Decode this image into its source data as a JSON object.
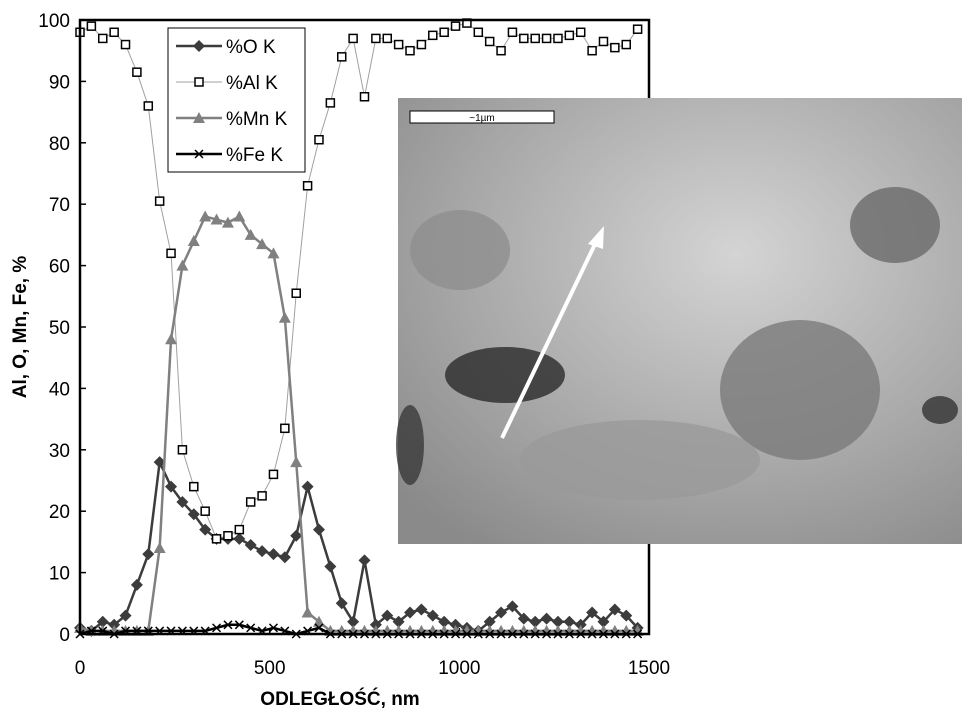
{
  "chart_data": {
    "type": "line",
    "x_label": "ODLEGŁOŚĆ, nm",
    "y_label": "Al, O, Mn, Fe,  %",
    "inset_scale": "~1µm",
    "xlim": [
      0,
      1500
    ],
    "xticks": [
      0,
      500,
      1000,
      1500
    ],
    "ylim": [
      0,
      100
    ],
    "yticks": [
      0,
      10,
      20,
      30,
      40,
      50,
      60,
      70,
      80,
      90,
      100
    ],
    "x": [
      0,
      30,
      60,
      90,
      120,
      150,
      180,
      210,
      240,
      270,
      300,
      330,
      360,
      390,
      420,
      450,
      480,
      510,
      540,
      570,
      600,
      630,
      660,
      690,
      720,
      750,
      780,
      810,
      840,
      870,
      900,
      930,
      960,
      990,
      1020,
      1050,
      1080,
      1110,
      1140,
      1170,
      1200,
      1230,
      1260,
      1290,
      1320,
      1350,
      1380,
      1410,
      1440,
      1470
    ],
    "series": [
      {
        "name": "%O K",
        "color": "#3c3c3c",
        "marker": "diamond",
        "values": [
          1,
          0.5,
          2,
          1.5,
          3,
          8,
          13,
          28,
          24,
          21.5,
          19.5,
          17,
          15.5,
          15.5,
          15.5,
          14.5,
          13.5,
          13,
          12.5,
          16,
          24,
          17,
          11,
          5,
          2,
          12,
          1.5,
          3,
          2,
          3.5,
          4,
          3,
          2,
          1.5,
          1,
          0.5,
          2,
          3.5,
          4.5,
          2.5,
          2,
          2.5,
          2,
          2,
          1.5,
          3.5,
          2,
          4,
          3,
          1
        ]
      },
      {
        "name": "%Al K",
        "color": "#a0a0a0",
        "marker": "square",
        "values": [
          98,
          99,
          97,
          98,
          96,
          91.5,
          86,
          70.5,
          62,
          30,
          24,
          20,
          15.5,
          16,
          17,
          21.5,
          22.5,
          26,
          33.5,
          55.5,
          73,
          80.5,
          86.5,
          94,
          97,
          87.5,
          97,
          97,
          96,
          95,
          96,
          97.5,
          98,
          99,
          99.5,
          98,
          96.5,
          95,
          98,
          97,
          97,
          97,
          97,
          97.5,
          98,
          95,
          96.5,
          95.5,
          96,
          98.5
        ]
      },
      {
        "name": "%Mn K",
        "color": "#808080",
        "marker": "triangle",
        "values": [
          1,
          0.5,
          0.5,
          0.5,
          0.5,
          0.5,
          0.5,
          14,
          48,
          60,
          64,
          68,
          67.5,
          67,
          68,
          65,
          63.5,
          62,
          51.5,
          28,
          3.5,
          2,
          0.5,
          0.5,
          0.5,
          0.5,
          0.5,
          0.5,
          0.5,
          0.5,
          0.5,
          0.5,
          0.5,
          0.5,
          0.5,
          0.5,
          0.5,
          0.5,
          0.5,
          0.5,
          0.5,
          0.5,
          0.5,
          0.5,
          0.5,
          0.5,
          0.5,
          0.5,
          0.5,
          0.5
        ]
      },
      {
        "name": "%Fe K",
        "color": "#000000",
        "marker": "x",
        "values": [
          0,
          0.5,
          0.5,
          0,
          0.5,
          0.5,
          0.5,
          0.5,
          0.5,
          0.5,
          0.5,
          0.5,
          1,
          1.5,
          1.5,
          1,
          0.5,
          1,
          0.5,
          0,
          0.5,
          1,
          0,
          0,
          0,
          0,
          0,
          0,
          0,
          0,
          0,
          0,
          0,
          0,
          0,
          0,
          0,
          0,
          0,
          0,
          0,
          0,
          0,
          0,
          0,
          0,
          0,
          0,
          0,
          0
        ]
      }
    ]
  }
}
